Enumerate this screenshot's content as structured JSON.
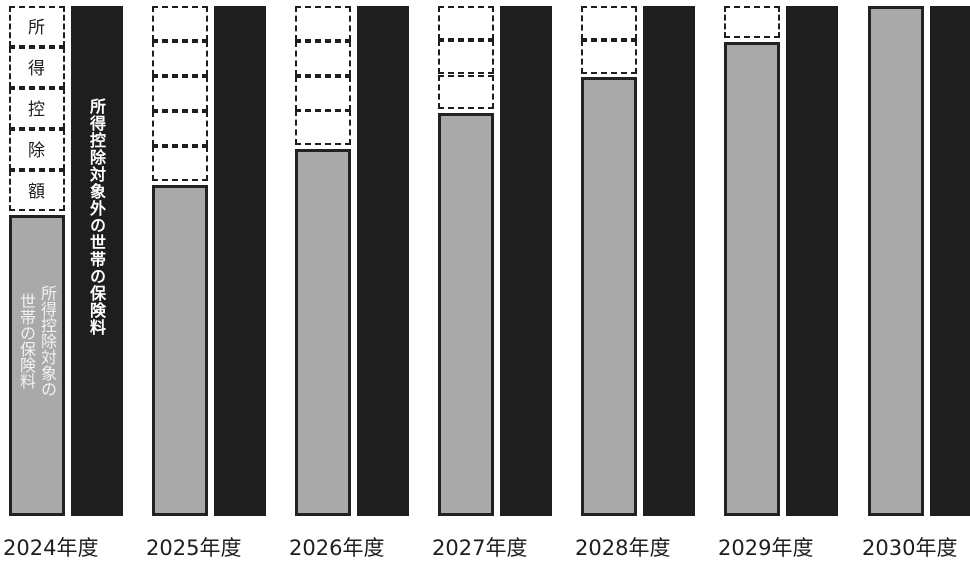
{
  "labels": {
    "deduction_amount": "所得控除額",
    "excluded_households_premium": "所得控除対象外の世帯の保険料",
    "covered_households_premium_line1": "所得控除対象の",
    "covered_households_premium_line2": "世帯の保険料"
  },
  "years": [
    {
      "label": "2024年度",
      "deduction_boxes": 5,
      "gray_fraction": 0.59
    },
    {
      "label": "2025年度",
      "deduction_boxes": 5,
      "gray_fraction": 0.65
    },
    {
      "label": "2026年度",
      "deduction_boxes": 4,
      "gray_fraction": 0.72
    },
    {
      "label": "2027年度",
      "deduction_boxes": 3,
      "gray_fraction": 0.79
    },
    {
      "label": "2028年度",
      "deduction_boxes": 2,
      "gray_fraction": 0.86
    },
    {
      "label": "2029年度",
      "deduction_boxes": 1,
      "gray_fraction": 0.93
    },
    {
      "label": "2030年度",
      "deduction_boxes": 0,
      "gray_fraction": 1.0
    }
  ],
  "colors": {
    "covered_bar": "#a9a9a9",
    "excluded_bar": "#1e1e1e",
    "deduction_box_border": "#1e1e1e"
  }
}
